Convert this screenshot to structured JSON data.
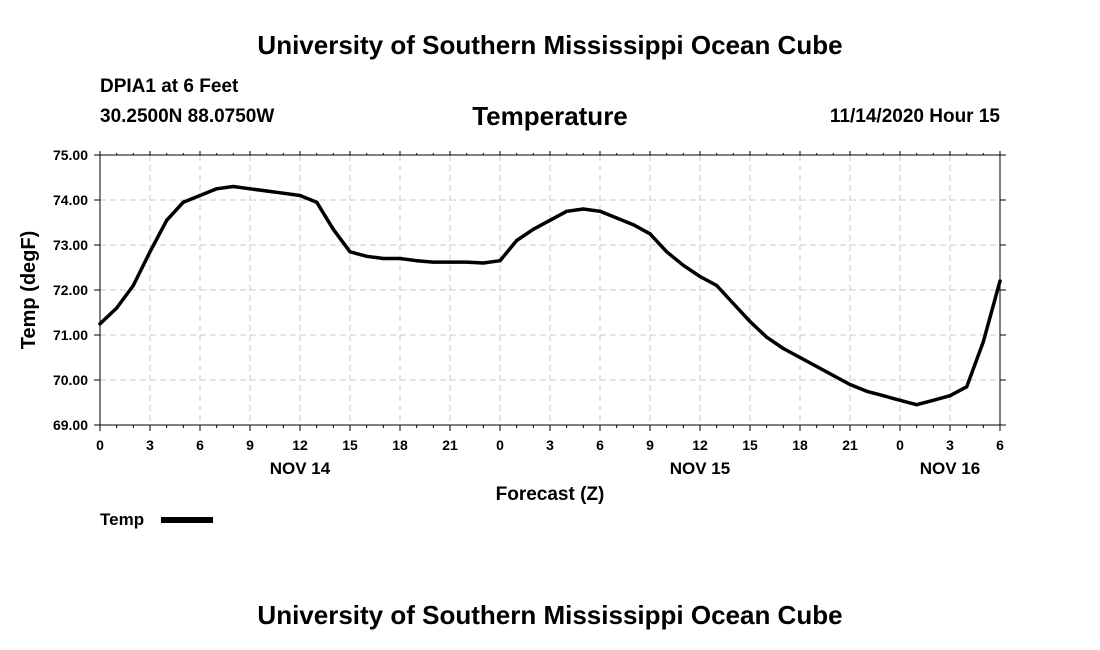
{
  "header": {
    "title_top": "University of Southern Mississippi Ocean Cube",
    "station": "DPIA1 at 6 Feet",
    "coords": "30.2500N 88.0750W",
    "chart_title": "Temperature",
    "timestamp": "11/14/2020 Hour 15",
    "title_bottom": "University of Southern Mississippi Ocean Cube"
  },
  "legend": {
    "label": "Temp",
    "color": "#000000"
  },
  "chart_data": {
    "type": "line",
    "title": "Temperature",
    "xlabel": "Forecast (Z)",
    "ylabel": "Temp (degF)",
    "ylim": [
      69.0,
      75.0
    ],
    "xlim": [
      0,
      54
    ],
    "grid": true,
    "yticks": [
      "69.00",
      "70.00",
      "71.00",
      "72.00",
      "73.00",
      "74.00",
      "75.00"
    ],
    "xticks": [
      {
        "x": 0,
        "label": "0"
      },
      {
        "x": 3,
        "label": "3"
      },
      {
        "x": 6,
        "label": "6"
      },
      {
        "x": 9,
        "label": "9"
      },
      {
        "x": 12,
        "label": "12"
      },
      {
        "x": 15,
        "label": "15"
      },
      {
        "x": 18,
        "label": "18"
      },
      {
        "x": 21,
        "label": "21"
      },
      {
        "x": 24,
        "label": "0"
      },
      {
        "x": 27,
        "label": "3"
      },
      {
        "x": 30,
        "label": "6"
      },
      {
        "x": 33,
        "label": "9"
      },
      {
        "x": 36,
        "label": "12"
      },
      {
        "x": 39,
        "label": "15"
      },
      {
        "x": 42,
        "label": "18"
      },
      {
        "x": 45,
        "label": "21"
      },
      {
        "x": 48,
        "label": "0"
      },
      {
        "x": 51,
        "label": "3"
      },
      {
        "x": 54,
        "label": "6"
      }
    ],
    "date_labels": [
      {
        "x": 12,
        "label": "NOV 14"
      },
      {
        "x": 36,
        "label": "NOV 15"
      },
      {
        "x": 51,
        "label": "NOV 16"
      }
    ],
    "series": [
      {
        "name": "Temp",
        "x": [
          0,
          1,
          2,
          3,
          4,
          5,
          6,
          7,
          8,
          9,
          10,
          11,
          12,
          13,
          14,
          15,
          16,
          17,
          18,
          19,
          20,
          21,
          22,
          23,
          24,
          25,
          26,
          27,
          28,
          29,
          30,
          31,
          32,
          33,
          34,
          35,
          36,
          37,
          38,
          39,
          40,
          41,
          42,
          43,
          44,
          45,
          46,
          47,
          48,
          49,
          50,
          51,
          52,
          53,
          54
        ],
        "values": [
          71.25,
          71.6,
          72.1,
          72.85,
          73.55,
          73.95,
          74.1,
          74.25,
          74.3,
          74.25,
          74.2,
          74.15,
          74.1,
          73.95,
          73.35,
          72.85,
          72.75,
          72.7,
          72.7,
          72.65,
          72.62,
          72.62,
          72.62,
          72.6,
          72.65,
          73.1,
          73.35,
          73.55,
          73.75,
          73.8,
          73.75,
          73.6,
          73.45,
          73.25,
          72.85,
          72.55,
          72.3,
          72.1,
          71.7,
          71.3,
          70.95,
          70.7,
          70.5,
          70.3,
          70.1,
          69.9,
          69.75,
          69.65,
          69.55,
          69.45,
          69.55,
          69.65,
          69.85,
          70.85,
          72.2
        ]
      }
    ]
  }
}
